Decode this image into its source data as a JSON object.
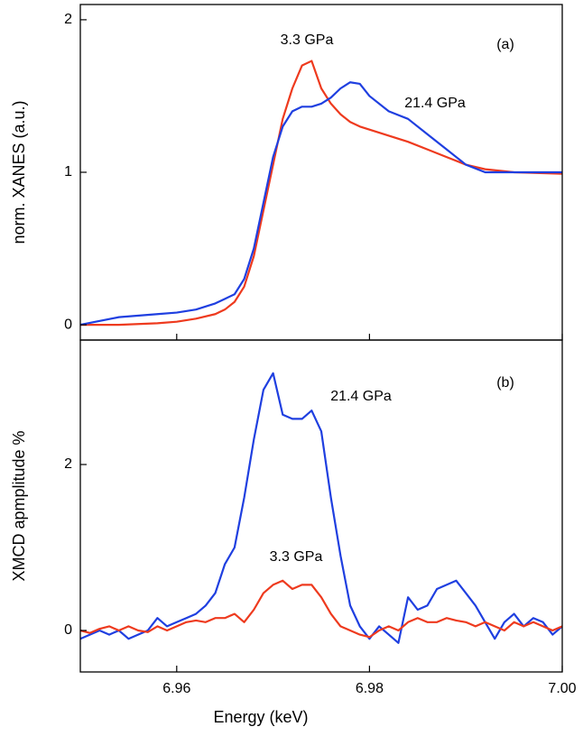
{
  "chart_data": [
    {
      "type": "line",
      "y_label": "norm. XANES (a.u.)",
      "annotations": [
        "(a)",
        "3.3 GPa",
        "21.4 GPa"
      ],
      "xlim": [
        6.95,
        7.0
      ],
      "xticks": [
        6.96,
        6.98,
        7
      ],
      "ylim": [
        -0.1,
        2.1
      ],
      "yticks": [
        0,
        1,
        2
      ],
      "x": [
        6.95,
        6.954,
        6.958,
        6.96,
        6.962,
        6.964,
        6.965,
        6.966,
        6.967,
        6.968,
        6.969,
        6.97,
        6.971,
        6.972,
        6.973,
        6.974,
        6.975,
        6.976,
        6.977,
        6.978,
        6.979,
        6.98,
        6.982,
        6.984,
        6.986,
        6.988,
        6.99,
        6.992,
        6.995,
        7.0
      ],
      "series": [
        {
          "name": "3.3 GPa",
          "color": "#ee3a1e",
          "values": [
            0,
            0,
            0.01,
            0.02,
            0.04,
            0.07,
            0.1,
            0.15,
            0.25,
            0.45,
            0.75,
            1.05,
            1.35,
            1.55,
            1.7,
            1.73,
            1.55,
            1.45,
            1.38,
            1.33,
            1.3,
            1.28,
            1.24,
            1.2,
            1.15,
            1.1,
            1.05,
            1.02,
            1.0,
            0.99
          ]
        },
        {
          "name": "21.4 GPa",
          "color": "#1f3fe0",
          "values": [
            0,
            0.05,
            0.07,
            0.08,
            0.1,
            0.14,
            0.17,
            0.2,
            0.3,
            0.5,
            0.8,
            1.1,
            1.3,
            1.4,
            1.43,
            1.43,
            1.45,
            1.49,
            1.55,
            1.59,
            1.58,
            1.5,
            1.4,
            1.35,
            1.25,
            1.15,
            1.05,
            1.0,
            1.0,
            1.0
          ]
        }
      ]
    },
    {
      "type": "line",
      "y_label": "XMCD apmplitude %",
      "x_label": "Energy (keV)",
      "annotations": [
        "(b)",
        "21.4 GPa",
        "3.3 GPa"
      ],
      "xlim": [
        6.95,
        7.0
      ],
      "xticks": [
        6.96,
        6.98,
        {
          "value": 7,
          "label": "7.00"
        }
      ],
      "ylim": [
        -0.5,
        3.5
      ],
      "yticks": [
        0,
        2
      ],
      "x": [
        6.95,
        6.951,
        6.952,
        6.953,
        6.954,
        6.955,
        6.956,
        6.957,
        6.958,
        6.959,
        6.96,
        6.961,
        6.962,
        6.963,
        6.964,
        6.965,
        6.966,
        6.967,
        6.968,
        6.969,
        6.97,
        6.971,
        6.972,
        6.973,
        6.974,
        6.975,
        6.976,
        6.977,
        6.978,
        6.979,
        6.98,
        6.981,
        6.982,
        6.983,
        6.984,
        6.985,
        6.986,
        6.987,
        6.988,
        6.989,
        6.99,
        6.991,
        6.992,
        6.993,
        6.994,
        6.995,
        6.996,
        6.997,
        6.998,
        6.999,
        7.0
      ],
      "series": [
        {
          "name": "21.4 GPa",
          "color": "#1f3fe0",
          "values": [
            -0.1,
            -0.05,
            0.0,
            -0.05,
            0.0,
            -0.1,
            -0.05,
            0.0,
            0.15,
            0.05,
            0.1,
            0.15,
            0.2,
            0.3,
            0.45,
            0.8,
            1.0,
            1.6,
            2.3,
            2.9,
            3.1,
            2.6,
            2.55,
            2.55,
            2.65,
            2.4,
            1.6,
            0.9,
            0.3,
            0.05,
            -0.1,
            0.05,
            -0.05,
            -0.15,
            0.4,
            0.25,
            0.3,
            0.5,
            0.55,
            0.6,
            0.45,
            0.3,
            0.1,
            -0.1,
            0.1,
            0.2,
            0.05,
            0.15,
            0.1,
            -0.05,
            0.05
          ]
        },
        {
          "name": "3.3 GPa",
          "color": "#ee3a1e",
          "values": [
            0,
            -0.03,
            0.02,
            0.05,
            0.0,
            0.05,
            0.0,
            -0.02,
            0.05,
            0.0,
            0.05,
            0.1,
            0.12,
            0.1,
            0.15,
            0.15,
            0.2,
            0.1,
            0.25,
            0.45,
            0.55,
            0.6,
            0.5,
            0.55,
            0.55,
            0.4,
            0.2,
            0.05,
            0.0,
            -0.05,
            -0.08,
            0.0,
            0.05,
            0.0,
            0.1,
            0.15,
            0.1,
            0.1,
            0.15,
            0.12,
            0.1,
            0.05,
            0.1,
            0.05,
            0.0,
            0.1,
            0.05,
            0.1,
            0.05,
            0.0,
            0.05
          ]
        }
      ]
    }
  ]
}
